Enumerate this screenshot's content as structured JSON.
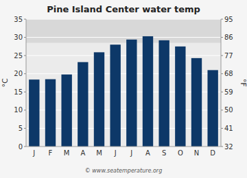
{
  "chart_data": {
    "type": "bar",
    "title": "Pine Island Center water temp",
    "categories": [
      "J",
      "F",
      "M",
      "A",
      "M",
      "J",
      "J",
      "A",
      "S",
      "O",
      "N",
      "D"
    ],
    "values": [
      18.4,
      18.5,
      19.8,
      23.2,
      25.9,
      28.0,
      29.4,
      30.3,
      29.2,
      27.5,
      24.3,
      21.0
    ],
    "color": "#0d3868",
    "ylabel": "°C",
    "y2label": "°F",
    "ylim": [
      0,
      35
    ],
    "yticks": [
      0,
      5,
      10,
      15,
      20,
      25,
      30,
      35
    ],
    "y2lim": [
      32,
      95
    ],
    "y2ticks": [
      32,
      41,
      50,
      59,
      68,
      77,
      86,
      95
    ],
    "highlight_band": [
      28.5,
      35
    ],
    "watermark": "© www.seatemperature.org",
    "grid": true
  }
}
